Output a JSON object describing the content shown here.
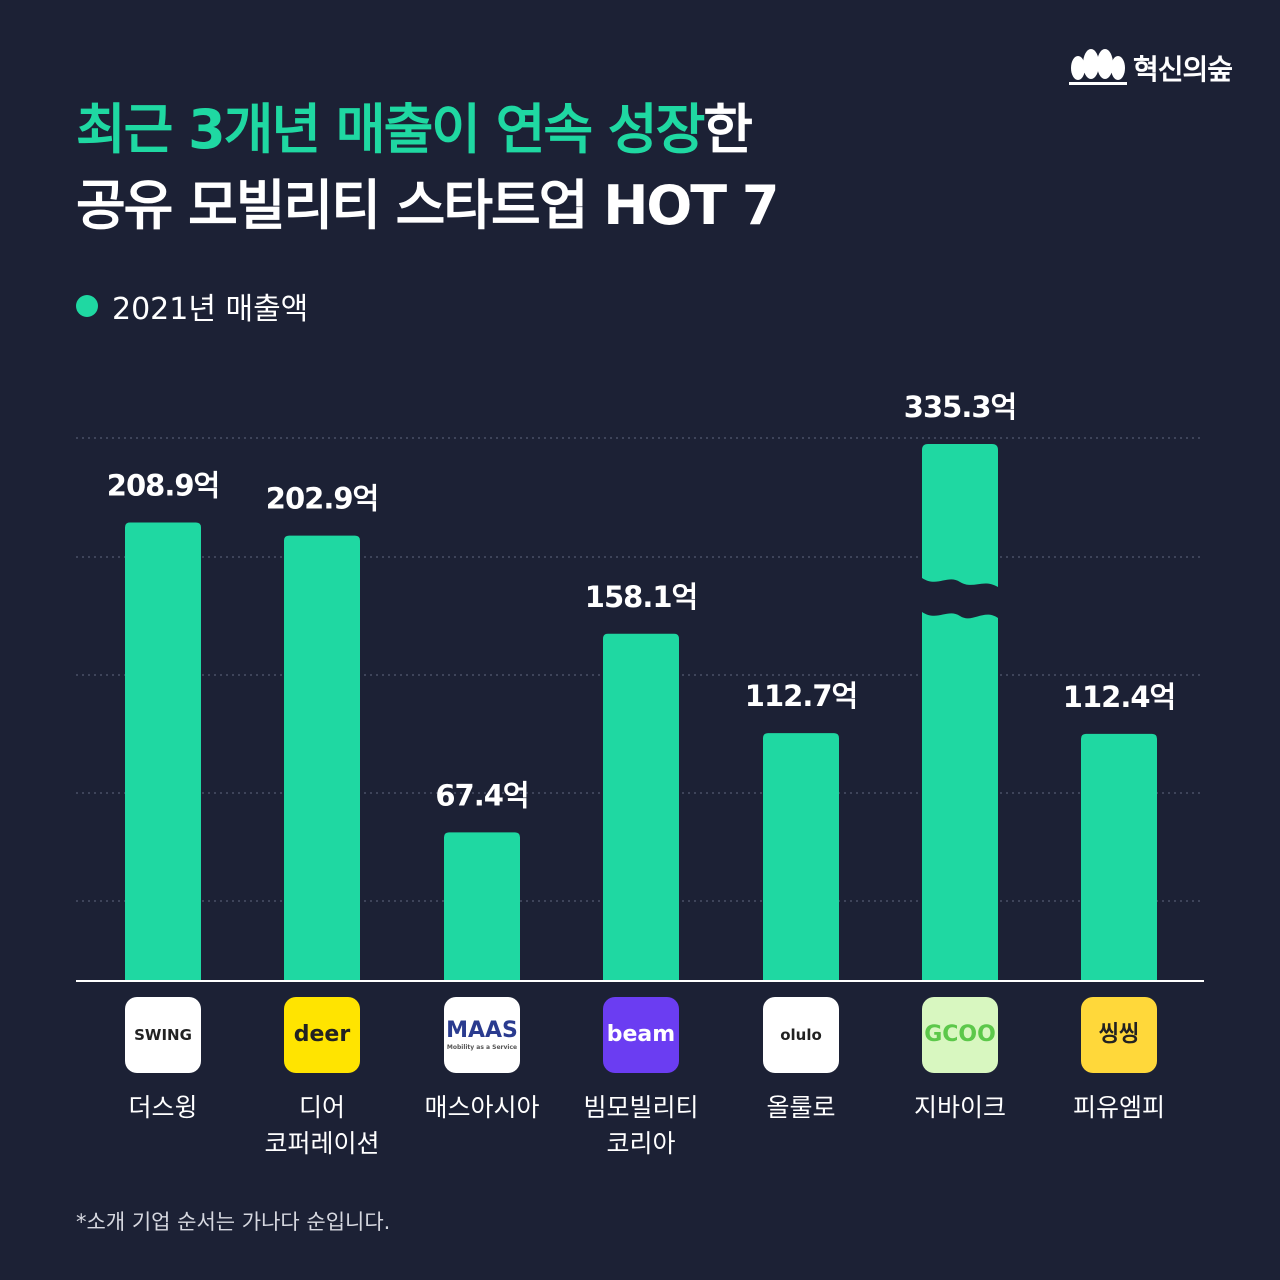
{
  "brand": {
    "name": "혁신의숲"
  },
  "title": {
    "line1_highlight": "최근 3개년 매출이 연속 성장",
    "line1_rest": "한",
    "line2": "공유 모빌리티 스타트업 HOT 7"
  },
  "legend": {
    "label": "2021년 매출액"
  },
  "colors": {
    "background": "#1c2135",
    "accent": "#1fd8a2",
    "grid": "#4a5066"
  },
  "chart_data": {
    "type": "bar",
    "categories": [
      "더스윙",
      "디어\n코퍼레이션",
      "매스아시아",
      "빔모빌리티\n코리아",
      "올룰로",
      "지바이크",
      "피유엠피"
    ],
    "series": [
      {
        "name": "2021년 매출액",
        "values": [
          208.9,
          202.9,
          67.4,
          158.1,
          112.7,
          335.3,
          112.4
        ]
      }
    ],
    "value_labels": [
      "208.9억",
      "202.9억",
      "67.4억",
      "158.1억",
      "112.7억",
      "335.3억",
      "112.4억"
    ],
    "broken_bar_index": 5,
    "grid": true
  },
  "logos": [
    {
      "text": "SWING",
      "bg": "#ffffff",
      "color": "#222222"
    },
    {
      "text": "deer",
      "bg": "#ffe400",
      "color": "#222222"
    },
    {
      "text": "MAAS",
      "sub": "Mobility as a Service",
      "bg": "#ffffff",
      "color": "#2a3b8f"
    },
    {
      "text": "beam",
      "bg": "#6b3df2",
      "color": "#ffffff"
    },
    {
      "text": "olulo",
      "bg": "#ffffff",
      "color": "#222222"
    },
    {
      "text": "GCOO",
      "bg": "#d8f7c0",
      "color": "#5cc84a"
    },
    {
      "text": "씽씽",
      "bg": "#ffd83a",
      "color": "#222222"
    }
  ],
  "footnote": "*소개 기업 순서는 가나다 순입니다."
}
